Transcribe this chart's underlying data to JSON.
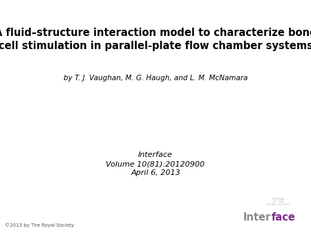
{
  "title_line1": "A fluid–structure interaction model to characterize bone",
  "title_line2": "cell stimulation in parallel-plate flow chamber systems",
  "authors": "by T. J. Vaughan, M. G. Haugh, and L. M. McNamara",
  "journal_line1": "Interface",
  "journal_line2": "Volume 10(81):20120900",
  "journal_line3": "April 6, 2013",
  "copyright": "©2013 by The Royal Society",
  "background_color": "#ffffff",
  "title_color": "#000000",
  "authors_color": "#000000",
  "journal_color": "#000000",
  "copyright_color": "#555555",
  "interface_gray": "#888888",
  "interface_purple": "#7b2d8b",
  "small_text_color": "#bbbbbb",
  "title_fontsize": 10.5,
  "authors_fontsize": 7.5,
  "journal_fontsize": 8.0,
  "copyright_fontsize": 5.0,
  "logo_small_fontsize": 3.2,
  "logo_large_fontsize": 10.5
}
